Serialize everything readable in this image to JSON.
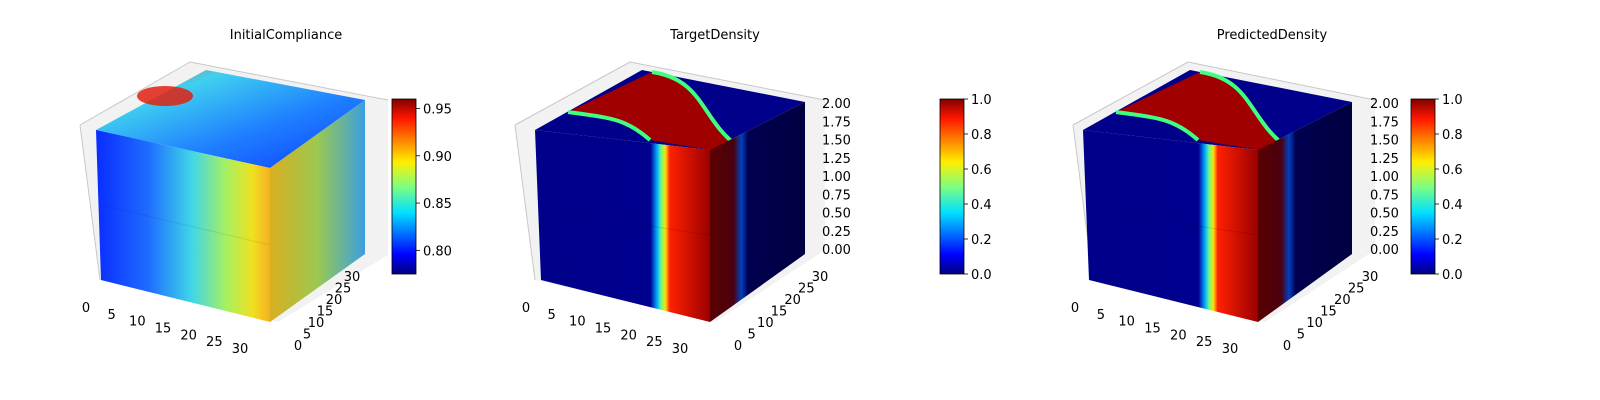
{
  "chart_data": [
    {
      "type": "voxel3d",
      "title": "InitialCompliance",
      "x_ticks": [
        "0",
        "5",
        "10",
        "15",
        "20",
        "25",
        "30"
      ],
      "y_ticks": [
        "0",
        "5",
        "10",
        "15",
        "20",
        "25",
        "30"
      ],
      "z_ticks": [],
      "colorbar": {
        "min": 0.775,
        "max": 0.96,
        "ticks": [
          "0.80",
          "0.85",
          "0.90",
          "0.95"
        ],
        "tick_values": [
          0.8,
          0.85,
          0.9,
          0.95
        ],
        "colormap": "jet"
      }
    },
    {
      "type": "voxel3d",
      "title": "TargetDensity",
      "x_ticks": [
        "0",
        "5",
        "10",
        "15",
        "20",
        "25",
        "30"
      ],
      "y_ticks": [
        "0",
        "5",
        "10",
        "15",
        "20",
        "25",
        "30"
      ],
      "z_ticks": [
        "0.00",
        "0.25",
        "0.50",
        "0.75",
        "1.00",
        "1.25",
        "1.50",
        "1.75",
        "2.00"
      ],
      "colorbar": {
        "min": 0.0,
        "max": 1.0,
        "ticks": [
          "0.0",
          "0.2",
          "0.4",
          "0.6",
          "0.8",
          "1.0"
        ],
        "tick_values": [
          0,
          0.2,
          0.4,
          0.6,
          0.8,
          1.0
        ],
        "colormap": "jet"
      }
    },
    {
      "type": "voxel3d",
      "title": "PredictedDensity",
      "x_ticks": [
        "0",
        "5",
        "10",
        "15",
        "20",
        "25",
        "30"
      ],
      "y_ticks": [
        "0",
        "5",
        "10",
        "15",
        "20",
        "25",
        "30"
      ],
      "z_ticks": [
        "0.00",
        "0.25",
        "0.50",
        "0.75",
        "1.00",
        "1.25",
        "1.50",
        "1.75",
        "2.00"
      ],
      "colorbar": {
        "min": 0.0,
        "max": 1.0,
        "ticks": [
          "0.0",
          "0.2",
          "0.4",
          "0.6",
          "0.8",
          "1.0"
        ],
        "tick_values": [
          0,
          0.2,
          0.4,
          0.6,
          0.8,
          1.0
        ],
        "colormap": "jet"
      }
    }
  ]
}
